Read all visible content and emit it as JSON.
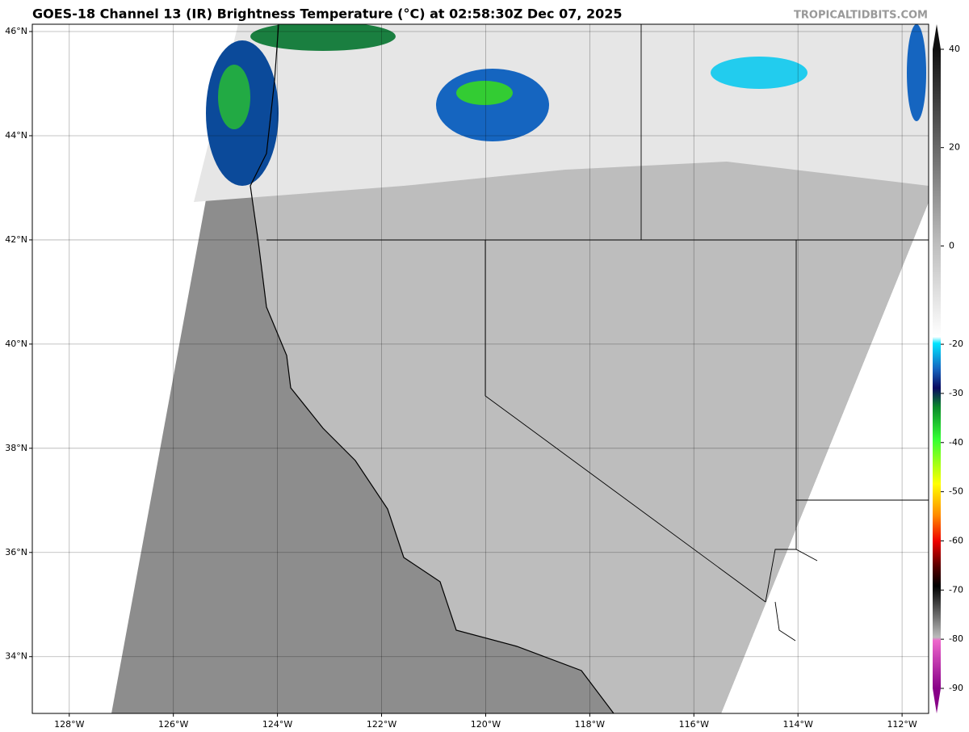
{
  "header": {
    "title": "GOES-18 Channel 13 (IR) Brightness Temperature (°C) at 02:58:30Z Dec 07, 2025",
    "credit": "TROPICALTIDBITS.COM"
  },
  "map": {
    "lonlim": [
      -128.71,
      -111.49
    ],
    "latlim": [
      32.91,
      46.14
    ],
    "lon_ticks": [
      {
        "value": -128,
        "label": "128°W"
      },
      {
        "value": -126,
        "label": "126°W"
      },
      {
        "value": -124,
        "label": "124°W"
      },
      {
        "value": -122,
        "label": "122°W"
      },
      {
        "value": -120,
        "label": "120°W"
      },
      {
        "value": -118,
        "label": "118°W"
      },
      {
        "value": -116,
        "label": "116°W"
      },
      {
        "value": -114,
        "label": "114°W"
      },
      {
        "value": -112,
        "label": "112°W"
      }
    ],
    "lat_ticks": [
      {
        "value": 46,
        "label": "46°N"
      },
      {
        "value": 44,
        "label": "44°N"
      },
      {
        "value": 42,
        "label": "42°N"
      },
      {
        "value": 40,
        "label": "40°N"
      },
      {
        "value": 38,
        "label": "38°N"
      },
      {
        "value": 36,
        "label": "36°N"
      },
      {
        "value": 34,
        "label": "34°N"
      }
    ]
  },
  "colorbar": {
    "lim": [
      -90,
      40
    ],
    "ticks": [
      40,
      20,
      0,
      -20,
      -30,
      -40,
      -50,
      -60,
      -70,
      -80,
      -90
    ]
  }
}
